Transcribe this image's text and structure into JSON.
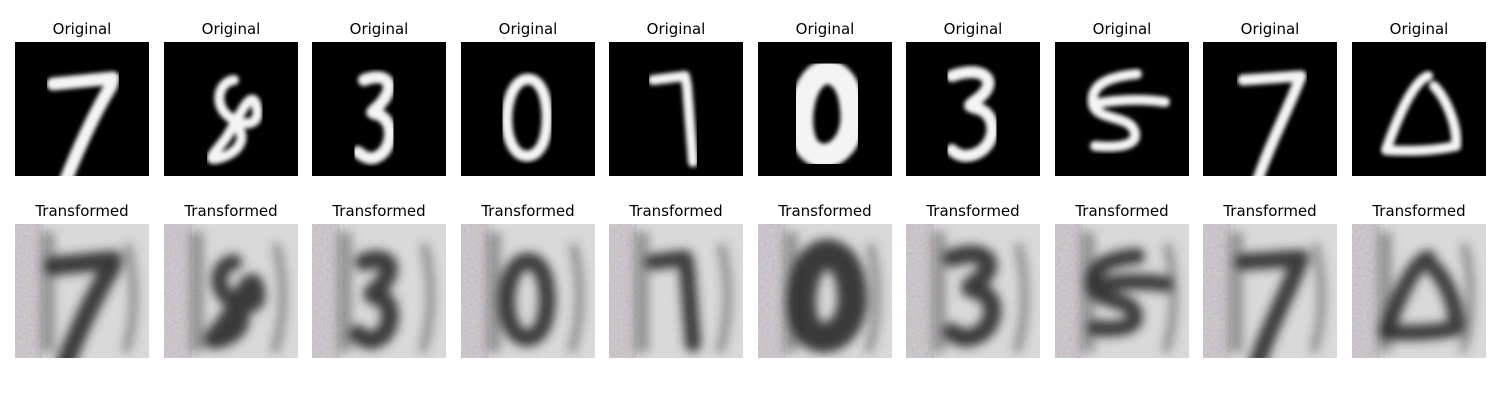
{
  "rows": [
    {
      "name": "original",
      "panels": [
        {
          "title": "Original",
          "digit": "7"
        },
        {
          "title": "Original",
          "digit": "8"
        },
        {
          "title": "Original",
          "digit": "3"
        },
        {
          "title": "Original",
          "digit": "0"
        },
        {
          "title": "Original",
          "digit": "7"
        },
        {
          "title": "Original",
          "digit": "0"
        },
        {
          "title": "Original",
          "digit": "3"
        },
        {
          "title": "Original",
          "digit": "5"
        },
        {
          "title": "Original",
          "digit": "7"
        },
        {
          "title": "Original",
          "digit": "0"
        }
      ]
    },
    {
      "name": "transformed",
      "panels": [
        {
          "title": "Transformed",
          "digit": "7"
        },
        {
          "title": "Transformed",
          "digit": "8"
        },
        {
          "title": "Transformed",
          "digit": "3"
        },
        {
          "title": "Transformed",
          "digit": "0"
        },
        {
          "title": "Transformed",
          "digit": "7"
        },
        {
          "title": "Transformed",
          "digit": "0"
        },
        {
          "title": "Transformed",
          "digit": "3"
        },
        {
          "title": "Transformed",
          "digit": "5"
        },
        {
          "title": "Transformed",
          "digit": "7"
        },
        {
          "title": "Transformed",
          "digit": "0"
        }
      ]
    }
  ]
}
